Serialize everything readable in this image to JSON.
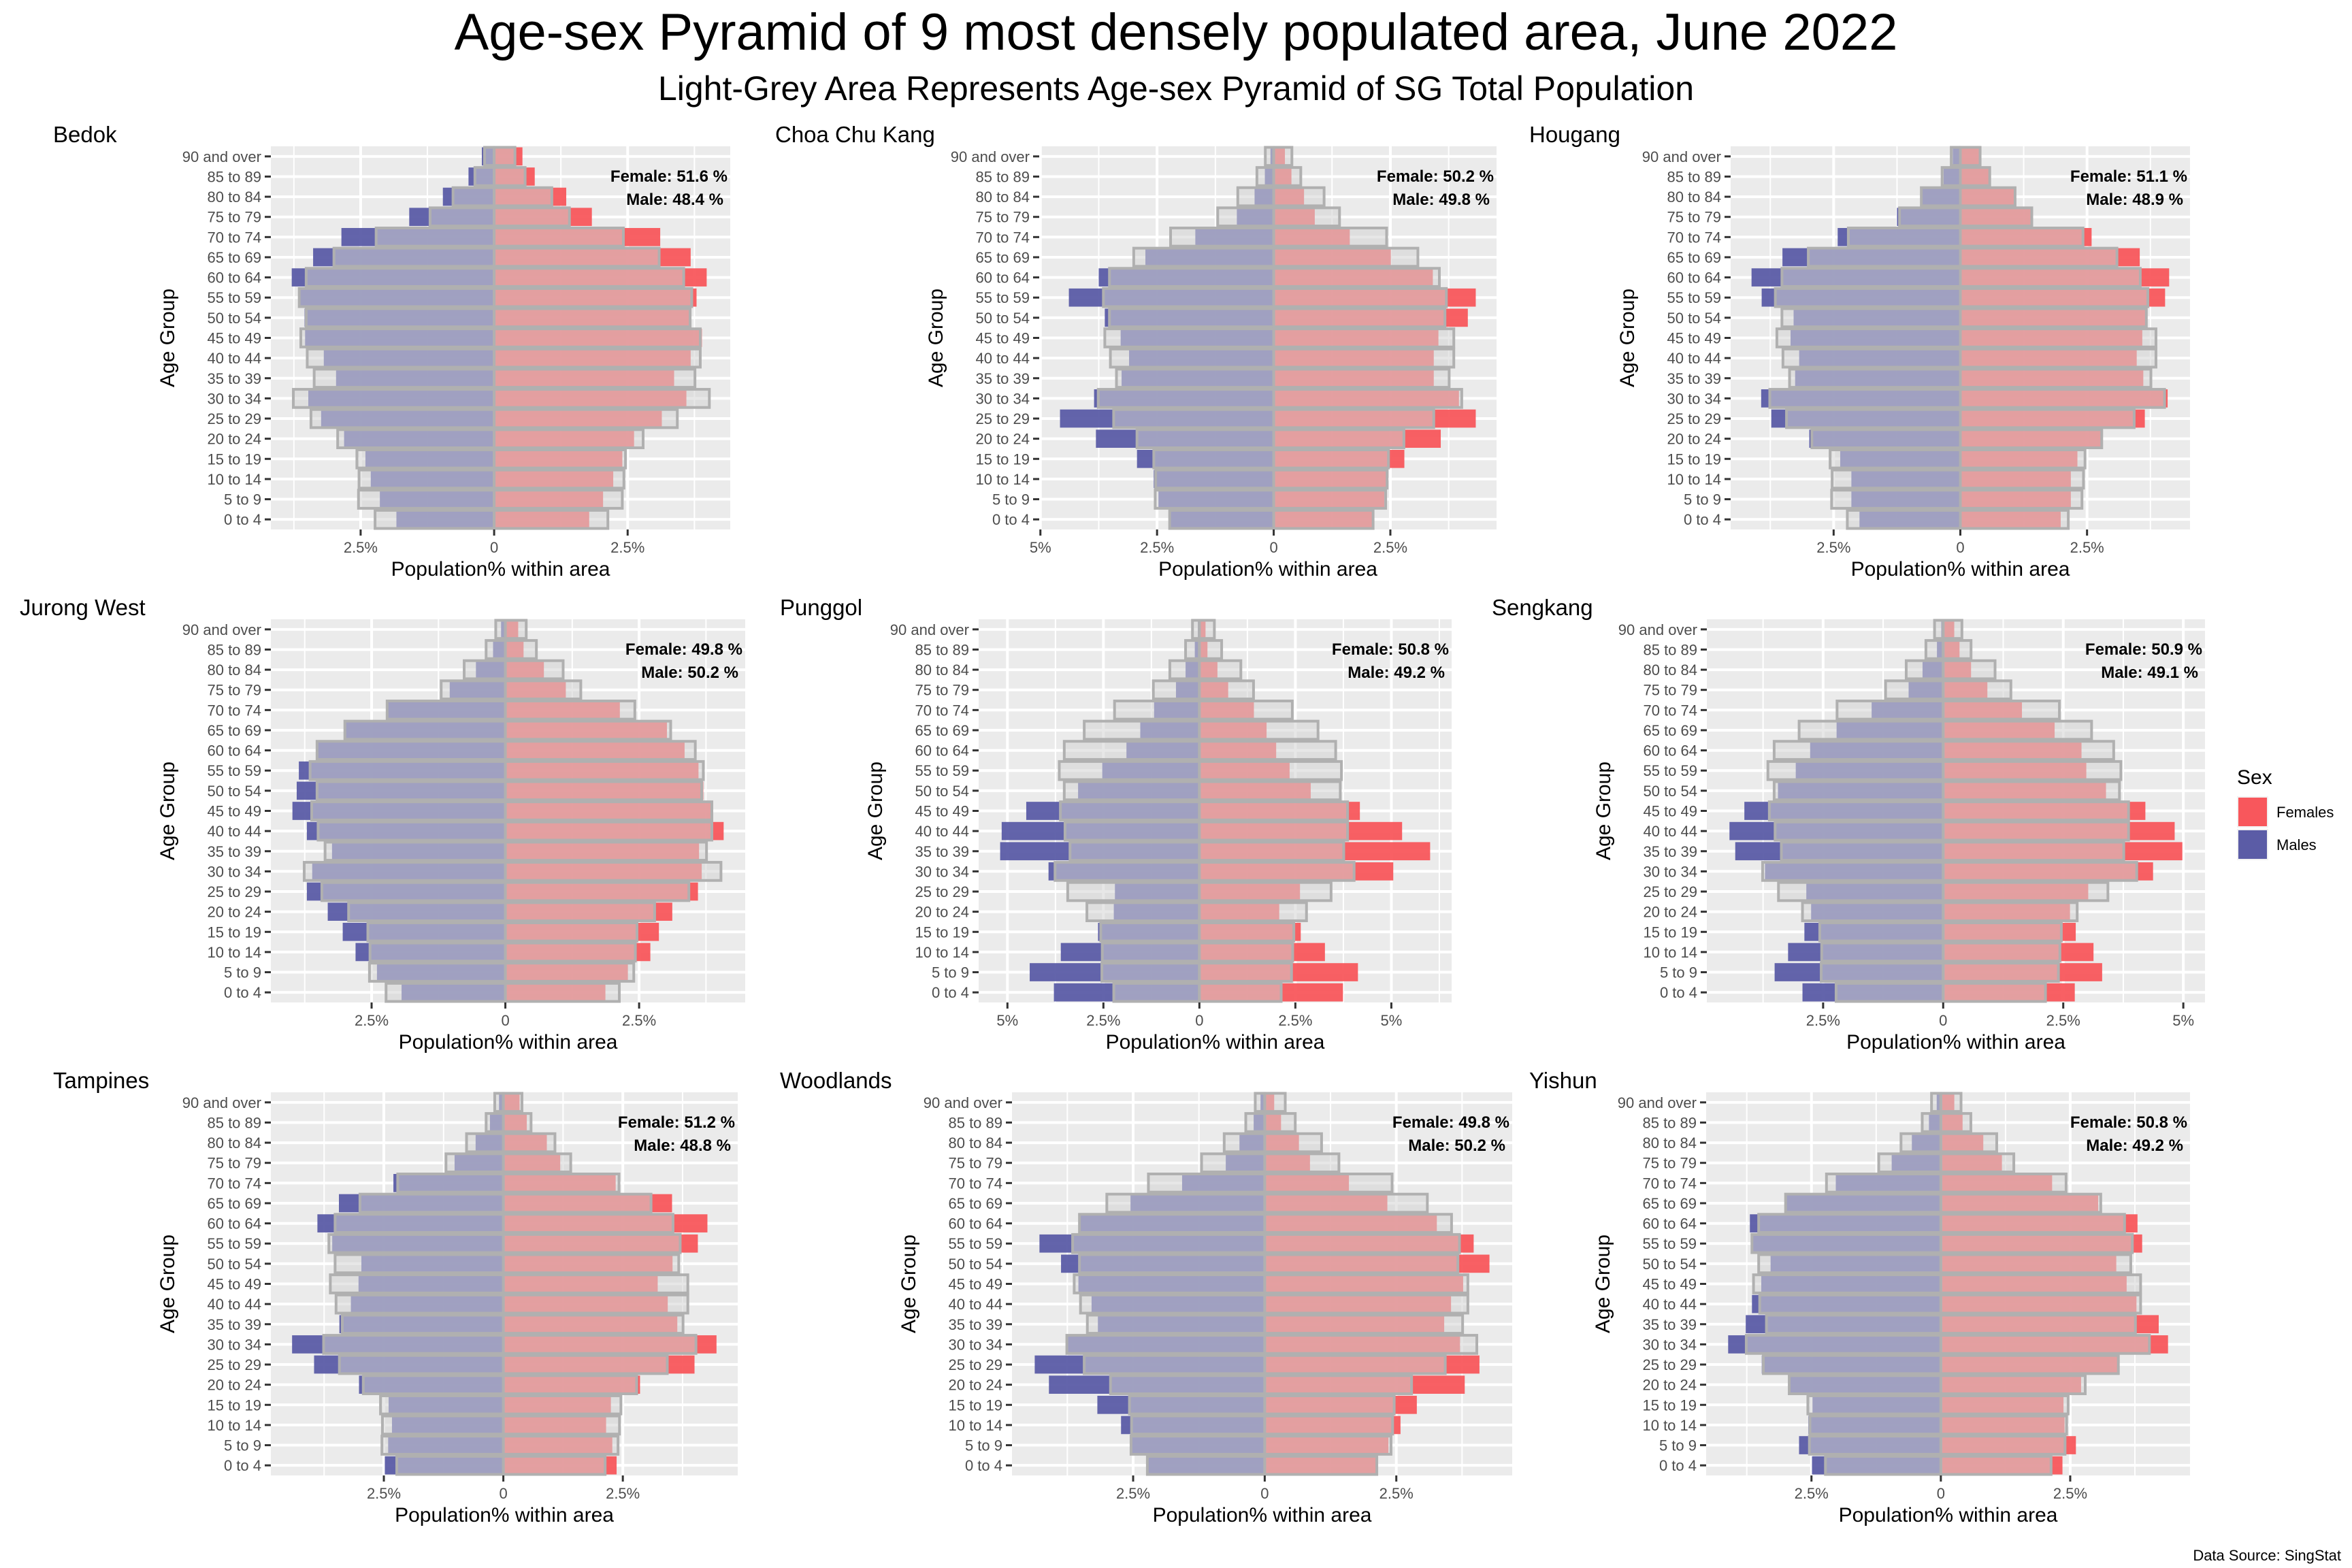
{
  "title": "Age-sex Pyramid of 9 most densely populated area, June 2022",
  "subtitle": "Light-Grey Area Represents Age-sex Pyramid of SG Total Population",
  "source": "Data Source: SingStat",
  "legend": {
    "title": "Sex",
    "items": [
      {
        "label": "Females",
        "color": "#F8575C"
      },
      {
        "label": "Males",
        "color": "#5B5CA6"
      }
    ]
  },
  "colors": {
    "female": "#F8575C",
    "male": "#5B5CA6",
    "reference_fill": "#D3D3D3",
    "reference_stroke": "#B0B0B0",
    "panel_bg": "#EBEBEB"
  },
  "chart_data": {
    "type": "bar",
    "subtype": "population pyramid (faceted)",
    "xlabel": "Population% within area",
    "ylabel": "Age Group",
    "x_unit": "%",
    "x_scale": "free per panel, males plotted to the left",
    "categories": [
      "90 and over",
      "85 to 89",
      "80 to 84",
      "75 to 79",
      "70 to 74",
      "65 to 69",
      "60 to 64",
      "55 to 59",
      "50 to 54",
      "45 to 49",
      "40 to 44",
      "35 to 39",
      "30 to 34",
      "25 to 29",
      "20 to 24",
      "15 to 19",
      "10 to 14",
      "5 to 9",
      "0 to 4"
    ],
    "legend_position": "right",
    "reference": {
      "name": "SG Total Population",
      "male": [
        0.18,
        0.36,
        0.77,
        1.2,
        2.21,
        3.0,
        3.52,
        3.65,
        3.52,
        3.62,
        3.5,
        3.37,
        3.76,
        3.43,
        2.93,
        2.57,
        2.53,
        2.54,
        2.23
      ],
      "female": [
        0.39,
        0.58,
        1.08,
        1.41,
        2.42,
        3.09,
        3.55,
        3.7,
        3.67,
        3.86,
        3.86,
        3.76,
        4.03,
        3.43,
        2.79,
        2.46,
        2.43,
        2.4,
        2.13
      ]
    },
    "panels": [
      {
        "area": "Bedok",
        "female_label": "Female:  51.6 %",
        "male_label": "Male: 48.4 %",
        "male": [
          0.23,
          0.48,
          0.96,
          1.59,
          2.86,
          3.39,
          3.79,
          3.63,
          3.55,
          3.54,
          3.19,
          2.96,
          3.48,
          3.24,
          2.81,
          2.41,
          2.31,
          2.14,
          1.83
        ],
        "female": [
          0.53,
          0.76,
          1.35,
          1.83,
          3.11,
          3.68,
          3.98,
          3.79,
          3.65,
          3.89,
          3.68,
          3.37,
          3.6,
          3.14,
          2.62,
          2.4,
          2.23,
          2.04,
          1.78
        ]
      },
      {
        "area": "Choa Chu Kang",
        "female_label": "Female:  50.2 %",
        "male_label": "Male: 49.8 %",
        "male": [
          0.07,
          0.19,
          0.41,
          0.79,
          1.68,
          2.75,
          3.75,
          4.39,
          3.62,
          3.28,
          3.1,
          3.26,
          3.85,
          4.58,
          3.81,
          2.93,
          2.57,
          2.47,
          2.22
        ],
        "female": [
          0.24,
          0.38,
          0.65,
          0.88,
          1.63,
          2.51,
          3.41,
          4.33,
          4.16,
          3.53,
          3.43,
          3.43,
          3.97,
          4.33,
          3.58,
          2.8,
          2.43,
          2.37,
          2.14
        ]
      },
      {
        "area": "Hougang",
        "female_label": "Female:  51.1 %",
        "male_label": "Male: 48.9 %",
        "male": [
          0.15,
          0.33,
          0.76,
          1.25,
          2.42,
          3.51,
          4.12,
          3.92,
          3.29,
          3.35,
          3.18,
          3.26,
          3.93,
          3.73,
          2.98,
          2.37,
          2.15,
          2.15,
          1.99
        ],
        "female": [
          0.38,
          0.58,
          1.08,
          1.42,
          2.59,
          3.54,
          4.12,
          4.04,
          3.67,
          3.59,
          3.48,
          3.61,
          4.09,
          3.64,
          2.79,
          2.31,
          2.18,
          2.18,
          1.98
        ]
      },
      {
        "area": "Jurong West",
        "female_label": "Female:  49.8 %",
        "male_label": "Male: 50.2 %",
        "male": [
          0.08,
          0.23,
          0.55,
          1.04,
          2.2,
          2.98,
          3.5,
          3.86,
          3.9,
          3.98,
          3.71,
          3.24,
          3.61,
          3.71,
          3.32,
          3.04,
          2.8,
          2.4,
          1.94
        ],
        "female": [
          0.24,
          0.34,
          0.72,
          1.13,
          2.14,
          3.02,
          3.35,
          3.61,
          3.7,
          3.85,
          4.08,
          3.62,
          3.67,
          3.6,
          3.12,
          2.87,
          2.71,
          2.29,
          1.87
        ]
      },
      {
        "area": "Punggol",
        "female_label": "Female:  50.8 %",
        "male_label": "Male: 49.2 %",
        "male": [
          0.04,
          0.12,
          0.36,
          0.61,
          1.18,
          1.54,
          1.9,
          2.53,
          3.16,
          4.51,
          5.15,
          5.19,
          3.93,
          2.2,
          2.23,
          2.64,
          3.61,
          4.42,
          3.79
        ],
        "female": [
          0.16,
          0.21,
          0.47,
          0.75,
          1.42,
          1.75,
          2.0,
          2.35,
          2.9,
          4.18,
          5.28,
          6.01,
          5.05,
          2.62,
          2.08,
          2.64,
          3.27,
          4.13,
          3.74
        ]
      },
      {
        "area": "Sengkang",
        "female_label": "Female:  50.9 %",
        "male_label": "Male: 49.1 %",
        "male": [
          0.04,
          0.13,
          0.43,
          0.72,
          1.49,
          2.22,
          2.77,
          3.07,
          3.44,
          4.14,
          4.45,
          4.33,
          3.71,
          2.85,
          2.75,
          2.89,
          3.23,
          3.51,
          2.93
        ],
        "female": [
          0.23,
          0.34,
          0.58,
          0.92,
          1.64,
          2.32,
          2.88,
          2.98,
          3.39,
          4.21,
          4.82,
          4.98,
          4.37,
          3.02,
          2.64,
          2.76,
          3.13,
          3.31,
          2.74
        ]
      },
      {
        "area": "Tampines",
        "female_label": "Female:  51.2 %",
        "male_label": "Male: 48.8 %",
        "male": [
          0.09,
          0.28,
          0.58,
          1.02,
          2.3,
          3.44,
          3.89,
          3.58,
          2.97,
          3.03,
          3.19,
          3.43,
          4.42,
          3.96,
          3.02,
          2.4,
          2.33,
          2.41,
          2.48
        ],
        "female": [
          0.34,
          0.49,
          0.91,
          1.19,
          2.35,
          3.53,
          4.27,
          4.07,
          3.54,
          3.23,
          3.44,
          3.64,
          4.46,
          4.0,
          2.86,
          2.25,
          2.15,
          2.28,
          2.37
        ]
      },
      {
        "area": "Woodlands",
        "female_label": "Female:  49.8 %",
        "male_label": "Male: 50.2 %",
        "male": [
          0.08,
          0.21,
          0.48,
          0.74,
          1.57,
          2.55,
          3.5,
          4.28,
          3.87,
          3.54,
          3.29,
          3.17,
          3.74,
          4.37,
          4.1,
          3.18,
          2.73,
          2.52,
          2.22
        ],
        "female": [
          0.18,
          0.31,
          0.65,
          0.86,
          1.6,
          2.33,
          3.27,
          3.97,
          4.27,
          3.77,
          3.54,
          3.41,
          3.71,
          4.08,
          3.8,
          2.89,
          2.58,
          2.35,
          2.13
        ]
      },
      {
        "area": "Yishun",
        "female_label": "Female:  50.8 %",
        "male_label": "Male: 49.2 %",
        "male": [
          0.08,
          0.23,
          0.56,
          0.95,
          2.03,
          2.98,
          3.69,
          3.65,
          3.29,
          3.47,
          3.65,
          3.77,
          4.11,
          3.46,
          2.92,
          2.48,
          2.56,
          2.74,
          2.49
        ],
        "female": [
          0.26,
          0.42,
          0.82,
          1.18,
          2.15,
          3.04,
          3.8,
          3.89,
          3.39,
          3.59,
          3.78,
          4.21,
          4.39,
          3.44,
          2.71,
          2.37,
          2.39,
          2.61,
          2.35
        ]
      }
    ]
  }
}
